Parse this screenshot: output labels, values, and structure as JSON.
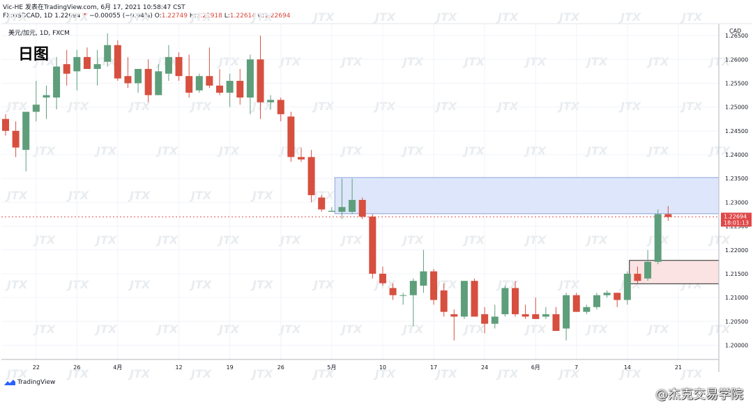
{
  "header": {
    "line1": "Vic-HE 发表在TradingView.com, 6月 17, 2021 10:58:47 CST",
    "symbol": "FX:USDCAD, 1D",
    "last": "1.22694",
    "change": "−0.00055 (−0.04%)",
    "o_label": "O:",
    "o_val": "1.22749",
    "h_label": "H:",
    "h_val": "1.22918",
    "l_label": "L:",
    "l_val": "1.22614",
    "c_label": "C:",
    "c_val": "1.22694",
    "series_name": "美元/加元, 1D, FXCM",
    "timeframe_title": "日图"
  },
  "footer": {
    "brand": "TradingView",
    "weibo": "@杰克交易学院"
  },
  "watermark_text": "JTX",
  "colors": {
    "up": "#5e9e7b",
    "down": "#d74f3f",
    "supply_zone": "#dde6fb",
    "supply_border": "#8ea4d6",
    "demand_zone": "#fbe3e3",
    "price_line": "#e04848"
  },
  "chart_data": {
    "type": "candlestick",
    "currency": "CAD",
    "ylim": [
      1.197,
      1.2675
    ],
    "y_ticks": [
      "1.26500",
      "1.26000",
      "1.25500",
      "1.25000",
      "1.24500",
      "1.24000",
      "1.23500",
      "1.23000",
      "1.22500",
      "1.22000",
      "1.21500",
      "1.21000",
      "1.20500",
      "1.20000"
    ],
    "x_ticks": [
      {
        "label": "22",
        "index": 3
      },
      {
        "label": "26",
        "index": 7
      },
      {
        "label": "4月",
        "index": 11
      },
      {
        "label": "12",
        "index": 17
      },
      {
        "label": "19",
        "index": 22
      },
      {
        "label": "26",
        "index": 27
      },
      {
        "label": "5月",
        "index": 32
      },
      {
        "label": "10",
        "index": 37
      },
      {
        "label": "17",
        "index": 42
      },
      {
        "label": "24",
        "index": 47
      },
      {
        "label": "6月",
        "index": 52
      },
      {
        "label": "7",
        "index": 56
      },
      {
        "label": "14",
        "index": 61
      },
      {
        "label": "21",
        "index": 66
      }
    ],
    "last_price": "1.22694",
    "countdown": "18:01:13",
    "supply_zone": {
      "from_index": 32.3,
      "to_index": 67,
      "low": 1.2276,
      "high": 1.2352
    },
    "demand_zone": {
      "from_index": 61.2,
      "to_index": 67,
      "low": 1.2129,
      "high": 1.2178
    },
    "candles": [
      {
        "o": 1.2475,
        "h": 1.2485,
        "l": 1.244,
        "c": 1.245
      },
      {
        "o": 1.245,
        "h": 1.247,
        "l": 1.2395,
        "c": 1.2415
      },
      {
        "o": 1.241,
        "h": 1.249,
        "l": 1.2365,
        "c": 1.249
      },
      {
        "o": 1.249,
        "h": 1.2555,
        "l": 1.247,
        "c": 1.2505
      },
      {
        "o": 1.252,
        "h": 1.2545,
        "l": 1.2475,
        "c": 1.2525
      },
      {
        "o": 1.252,
        "h": 1.2605,
        "l": 1.2495,
        "c": 1.2585
      },
      {
        "o": 1.259,
        "h": 1.262,
        "l": 1.2545,
        "c": 1.257
      },
      {
        "o": 1.2575,
        "h": 1.262,
        "l": 1.2535,
        "c": 1.2605
      },
      {
        "o": 1.2605,
        "h": 1.2625,
        "l": 1.258,
        "c": 1.258
      },
      {
        "o": 1.258,
        "h": 1.262,
        "l": 1.2545,
        "c": 1.259
      },
      {
        "o": 1.2595,
        "h": 1.2655,
        "l": 1.2585,
        "c": 1.263
      },
      {
        "o": 1.263,
        "h": 1.264,
        "l": 1.2555,
        "c": 1.256
      },
      {
        "o": 1.2565,
        "h": 1.2605,
        "l": 1.254,
        "c": 1.255
      },
      {
        "o": 1.255,
        "h": 1.258,
        "l": 1.253,
        "c": 1.258
      },
      {
        "o": 1.258,
        "h": 1.26,
        "l": 1.251,
        "c": 1.2525
      },
      {
        "o": 1.2525,
        "h": 1.259,
        "l": 1.2525,
        "c": 1.2575
      },
      {
        "o": 1.257,
        "h": 1.263,
        "l": 1.2555,
        "c": 1.2605
      },
      {
        "o": 1.2605,
        "h": 1.2615,
        "l": 1.2555,
        "c": 1.2565
      },
      {
        "o": 1.2565,
        "h": 1.261,
        "l": 1.252,
        "c": 1.253
      },
      {
        "o": 1.2535,
        "h": 1.257,
        "l": 1.253,
        "c": 1.2565
      },
      {
        "o": 1.2565,
        "h": 1.2625,
        "l": 1.254,
        "c": 1.2545
      },
      {
        "o": 1.2545,
        "h": 1.258,
        "l": 1.2525,
        "c": 1.253
      },
      {
        "o": 1.253,
        "h": 1.257,
        "l": 1.25,
        "c": 1.2555
      },
      {
        "o": 1.2555,
        "h": 1.258,
        "l": 1.2505,
        "c": 1.252
      },
      {
        "o": 1.252,
        "h": 1.261,
        "l": 1.2485,
        "c": 1.26
      },
      {
        "o": 1.26,
        "h": 1.265,
        "l": 1.2475,
        "c": 1.251
      },
      {
        "o": 1.251,
        "h": 1.2525,
        "l": 1.2495,
        "c": 1.2515
      },
      {
        "o": 1.2515,
        "h": 1.252,
        "l": 1.247,
        "c": 1.2485
      },
      {
        "o": 1.248,
        "h": 1.249,
        "l": 1.2385,
        "c": 1.2395
      },
      {
        "o": 1.2395,
        "h": 1.2415,
        "l": 1.2385,
        "c": 1.239
      },
      {
        "o": 1.2395,
        "h": 1.241,
        "l": 1.23,
        "c": 1.2315
      },
      {
        "o": 1.231,
        "h": 1.2315,
        "l": 1.228,
        "c": 1.2285
      },
      {
        "o": 1.228,
        "h": 1.229,
        "l": 1.228,
        "c": 1.2282
      },
      {
        "o": 1.228,
        "h": 1.235,
        "l": 1.2265,
        "c": 1.229
      },
      {
        "o": 1.228,
        "h": 1.235,
        "l": 1.2275,
        "c": 1.2305
      },
      {
        "o": 1.2305,
        "h": 1.231,
        "l": 1.2265,
        "c": 1.227
      },
      {
        "o": 1.227,
        "h": 1.2275,
        "l": 1.214,
        "c": 1.215
      },
      {
        "o": 1.215,
        "h": 1.2165,
        "l": 1.2125,
        "c": 1.213
      },
      {
        "o": 1.212,
        "h": 1.213,
        "l": 1.2095,
        "c": 1.2105
      },
      {
        "o": 1.2105,
        "h": 1.211,
        "l": 1.2085,
        "c": 1.2105
      },
      {
        "o": 1.2105,
        "h": 1.214,
        "l": 1.204,
        "c": 1.2135
      },
      {
        "o": 1.2125,
        "h": 1.22,
        "l": 1.211,
        "c": 1.2155
      },
      {
        "o": 1.2155,
        "h": 1.216,
        "l": 1.2085,
        "c": 1.2095
      },
      {
        "o": 1.2115,
        "h": 1.213,
        "l": 1.206,
        "c": 1.207
      },
      {
        "o": 1.2065,
        "h": 1.2075,
        "l": 1.201,
        "c": 1.206
      },
      {
        "o": 1.206,
        "h": 1.2135,
        "l": 1.2055,
        "c": 1.2135
      },
      {
        "o": 1.2135,
        "h": 1.214,
        "l": 1.206,
        "c": 1.206
      },
      {
        "o": 1.2065,
        "h": 1.208,
        "l": 1.2025,
        "c": 1.2045
      },
      {
        "o": 1.2045,
        "h": 1.2085,
        "l": 1.2035,
        "c": 1.206
      },
      {
        "o": 1.2065,
        "h": 1.2125,
        "l": 1.206,
        "c": 1.212
      },
      {
        "o": 1.212,
        "h": 1.2135,
        "l": 1.206,
        "c": 1.2065
      },
      {
        "o": 1.2065,
        "h": 1.2085,
        "l": 1.2055,
        "c": 1.206
      },
      {
        "o": 1.2065,
        "h": 1.21,
        "l": 1.2055,
        "c": 1.2055
      },
      {
        "o": 1.206,
        "h": 1.208,
        "l": 1.2055,
        "c": 1.2065
      },
      {
        "o": 1.2065,
        "h": 1.208,
        "l": 1.203,
        "c": 1.203
      },
      {
        "o": 1.2035,
        "h": 1.211,
        "l": 1.201,
        "c": 1.2105
      },
      {
        "o": 1.2105,
        "h": 1.211,
        "l": 1.207,
        "c": 1.207
      },
      {
        "o": 1.207,
        "h": 1.2085,
        "l": 1.2065,
        "c": 1.208
      },
      {
        "o": 1.208,
        "h": 1.211,
        "l": 1.2075,
        "c": 1.2105
      },
      {
        "o": 1.2105,
        "h": 1.2115,
        "l": 1.21,
        "c": 1.211
      },
      {
        "o": 1.211,
        "h": 1.211,
        "l": 1.208,
        "c": 1.2095
      },
      {
        "o": 1.2095,
        "h": 1.2155,
        "l": 1.2085,
        "c": 1.215
      },
      {
        "o": 1.215,
        "h": 1.2165,
        "l": 1.213,
        "c": 1.2135
      },
      {
        "o": 1.214,
        "h": 1.22,
        "l": 1.2135,
        "c": 1.2175
      },
      {
        "o": 1.2175,
        "h": 1.2285,
        "l": 1.217,
        "c": 1.2275
      },
      {
        "o": 1.2275,
        "h": 1.2292,
        "l": 1.2261,
        "c": 1.2269
      }
    ]
  }
}
